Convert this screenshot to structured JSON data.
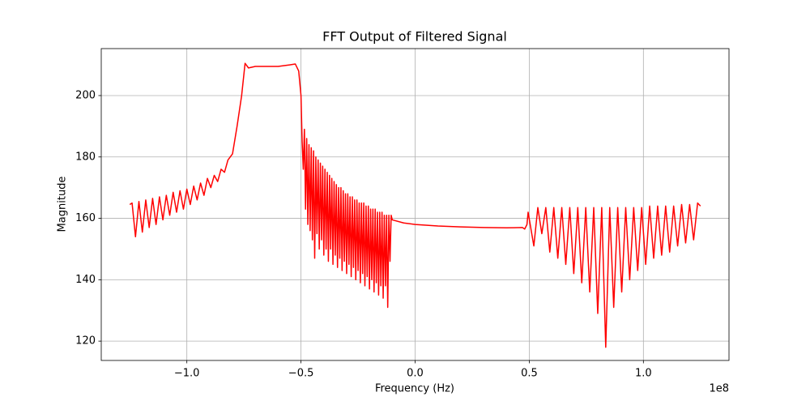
{
  "chart_data": {
    "type": "line",
    "title": "FFT Output of Filtered Signal",
    "x_label": "Frequency (Hz)",
    "y_label": "Magnitude",
    "x_offset_label": "1e8",
    "xlim": [
      -137500000.0,
      137500000.0
    ],
    "ylim": [
      113.7,
      215.3
    ],
    "xticks": [
      {
        "value": -100000000.0,
        "label": "−1.0"
      },
      {
        "value": -50000000.0,
        "label": "−0.5"
      },
      {
        "value": 0,
        "label": "0.0"
      },
      {
        "value": 50000000.0,
        "label": "0.5"
      },
      {
        "value": 100000000.0,
        "label": "1.0"
      }
    ],
    "yticks": [
      120,
      140,
      160,
      180,
      200
    ],
    "grid": true,
    "series": [
      {
        "color": "#ff0000",
        "x": [
          -125000000.0,
          -124000000.0,
          -122500000.0,
          -121000000.0,
          -119500000.0,
          -118000000.0,
          -116500000.0,
          -115000000.0,
          -113500000.0,
          -112000000.0,
          -110500000.0,
          -109000000.0,
          -107500000.0,
          -106000000.0,
          -104500000.0,
          -103000000.0,
          -101500000.0,
          -100000000.0,
          -98500000.0,
          -97000000.0,
          -95500000.0,
          -94000000.0,
          -92500000.0,
          -91000000.0,
          -89500000.0,
          -88000000.0,
          -86500000.0,
          -85000000.0,
          -83500000.0,
          -82000000.0,
          -80000000.0,
          -78000000.0,
          -76000000.0,
          -74500000.0,
          -73000000.0,
          -70000000.0,
          -65000000.0,
          -60000000.0,
          -55000000.0,
          -52500000.0,
          -51000000.0,
          -50000000.0,
          -49500000.0,
          -49000000.0,
          -48500000.0,
          -48000000.0,
          -47500000.0,
          -47000000.0,
          -46500000.0,
          -46000000.0,
          -45500000.0,
          -45000000.0,
          -44500000.0,
          -44000000.0,
          -43500000.0,
          -43000000.0,
          -42500000.0,
          -42000000.0,
          -41500000.0,
          -41000000.0,
          -40500000.0,
          -40000000.0,
          -39500000.0,
          -39000000.0,
          -38500000.0,
          -38000000.0,
          -37500000.0,
          -37000000.0,
          -36500000.0,
          -36000000.0,
          -35500000.0,
          -35000000.0,
          -34500000.0,
          -34000000.0,
          -33500000.0,
          -33000000.0,
          -32500000.0,
          -32000000.0,
          -31500000.0,
          -31000000.0,
          -30500000.0,
          -30000000.0,
          -29500000.0,
          -29000000.0,
          -28500000.0,
          -28000000.0,
          -27500000.0,
          -27000000.0,
          -26500000.0,
          -26000000.0,
          -25500000.0,
          -25000000.0,
          -24500000.0,
          -24000000.0,
          -23500000.0,
          -23000000.0,
          -22500000.0,
          -22000000.0,
          -21500000.0,
          -21000000.0,
          -20500000.0,
          -20000000.0,
          -19500000.0,
          -19000000.0,
          -18500000.0,
          -18000000.0,
          -17500000.0,
          -17000000.0,
          -16500000.0,
          -16000000.0,
          -15500000.0,
          -15000000.0,
          -14500000.0,
          -14000000.0,
          -13500000.0,
          -13000000.0,
          -12500000.0,
          -12000000.0,
          -11500000.0,
          -11000000.0,
          -10500000.0,
          -10000000.0,
          -5000000.0,
          0,
          10000000.0,
          20000000.0,
          30000000.0,
          40000000.0,
          47000000.0,
          48000000.0,
          49000000.0,
          49500000.0,
          52000000.0,
          53750000.0,
          55500000.0,
          57250000.0,
          59000000.0,
          60750000.0,
          62500000.0,
          64250000.0,
          66000000.0,
          67750000.0,
          69500000.0,
          71250000.0,
          73000000.0,
          74750000.0,
          76500000.0,
          78250000.0,
          80000000.0,
          81750000.0,
          83500000.0,
          85250000.0,
          87000000.0,
          88750000.0,
          90500000.0,
          92250000.0,
          94000000.0,
          95750000.0,
          97500000.0,
          99250000.0,
          101000000.0,
          102750000.0,
          104500000.0,
          106250000.0,
          108000000.0,
          109750000.0,
          111500000.0,
          113250000.0,
          115000000.0,
          116750000.0,
          118500000.0,
          120250000.0,
          122000000.0,
          123750000.0,
          125000000.0
        ],
        "values": [
          164.5,
          165,
          154,
          165.5,
          155.5,
          166,
          157,
          166.5,
          158,
          167,
          159.5,
          167.5,
          161,
          168.5,
          162,
          169,
          163,
          169.5,
          164.5,
          170.5,
          166,
          171.5,
          167.5,
          173,
          170,
          174,
          172,
          176,
          175,
          179,
          181,
          190,
          200,
          210.5,
          209,
          209.5,
          209.5,
          209.5,
          210,
          210.3,
          208,
          200,
          185,
          176,
          189,
          163,
          186,
          158,
          184,
          156,
          183,
          153,
          182,
          147,
          180,
          155,
          179,
          150,
          178,
          153,
          177,
          148,
          176,
          150,
          175,
          146,
          174,
          150,
          173,
          145,
          172,
          148,
          171,
          144,
          170,
          147,
          170,
          143,
          169,
          146,
          168,
          142,
          168,
          145,
          167,
          141,
          167,
          144,
          166,
          140,
          166,
          143,
          165,
          139,
          165,
          142,
          165,
          138,
          164,
          141,
          164,
          137,
          163,
          140,
          163,
          136,
          163,
          139,
          162,
          135,
          162,
          138,
          162,
          134,
          161,
          138,
          161,
          131,
          161,
          146,
          161,
          159.5,
          158.5,
          158,
          157.5,
          157.2,
          157,
          156.9,
          157,
          156.5,
          158,
          162,
          151,
          163.5,
          155,
          163.5,
          149,
          163.5,
          147,
          163.5,
          145,
          163.5,
          142,
          163.5,
          139,
          163.5,
          136,
          163.5,
          129,
          163.5,
          118,
          163.5,
          131,
          163.5,
          136,
          163.5,
          140,
          163.5,
          143,
          163.5,
          145,
          164,
          147,
          164,
          148,
          164,
          149,
          164,
          151,
          164.5,
          152,
          164.5,
          153,
          165,
          164
        ]
      }
    ]
  }
}
